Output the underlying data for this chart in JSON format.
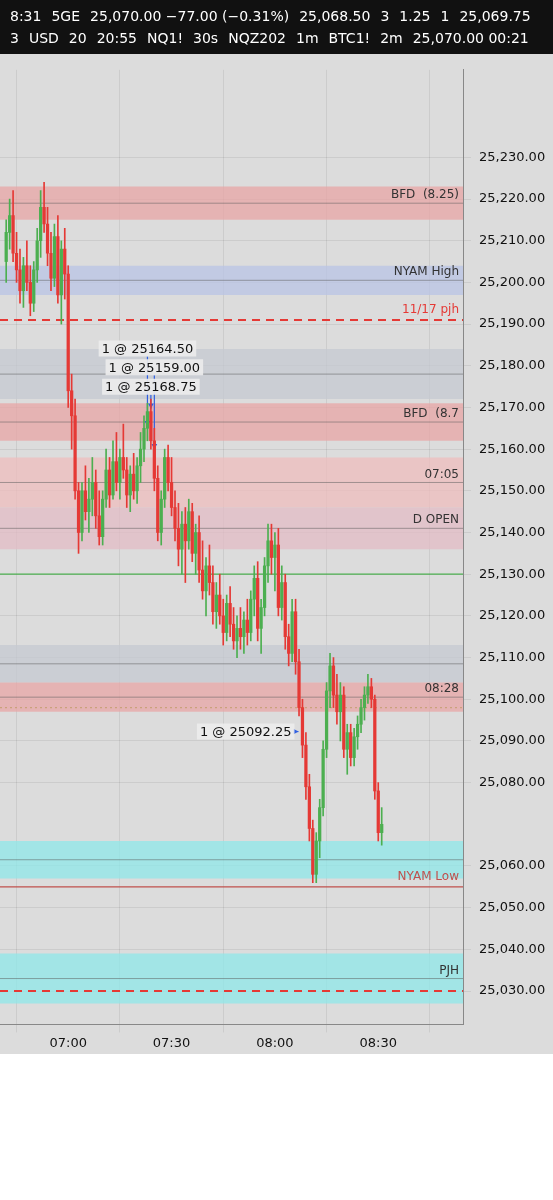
{
  "chart_data": {
    "type": "candlestick",
    "x": [
      6.7,
      6.7167,
      6.7333,
      6.75,
      6.7667,
      6.7833,
      6.8,
      6.8167,
      6.8333,
      6.85,
      6.8667,
      6.8833,
      6.9,
      6.9167,
      6.9333,
      6.95,
      6.9667,
      6.9833,
      7,
      7.0167,
      7.0333,
      7.05,
      7.0667,
      7.0833,
      7.1,
      7.1167,
      7.1333,
      7.15,
      7.1667,
      7.1833,
      7.2,
      7.2167,
      7.2333,
      7.25,
      7.2667,
      7.2833,
      7.3,
      7.3167,
      7.3333,
      7.35,
      7.3667,
      7.3833,
      7.4,
      7.4167,
      7.4333,
      7.45,
      7.4667,
      7.4833,
      7.5,
      7.5167,
      7.5333,
      7.55,
      7.5667,
      7.5833,
      7.6,
      7.6167,
      7.6333,
      7.65,
      7.6667,
      7.6833,
      7.7,
      7.7167,
      7.7333,
      7.75,
      7.7667,
      7.7833,
      7.8,
      7.8167,
      7.8333,
      7.85,
      7.8667,
      7.8833,
      7.9,
      7.9167,
      7.9333,
      7.95,
      7.9667,
      7.9833,
      8,
      8.0167,
      8.0333,
      8.05,
      8.0667,
      8.0833,
      8.1,
      8.1167,
      8.1333,
      8.15,
      8.1667,
      8.1833,
      8.2,
      8.2167,
      8.2333,
      8.25,
      8.2667,
      8.2833,
      8.3,
      8.3167,
      8.3333,
      8.35,
      8.3667,
      8.3833,
      8.4,
      8.4167,
      8.4333,
      8.45,
      8.4667,
      8.4833,
      8.5,
      8.5167
    ],
    "ohlc": [
      [
        25205,
        25215,
        25200,
        25212
      ],
      [
        25212,
        25220,
        25208,
        25216
      ],
      [
        25216,
        25222,
        25205,
        25207
      ],
      [
        25207,
        25212,
        25200,
        25203
      ],
      [
        25203,
        25208,
        25195,
        25198
      ],
      [
        25198,
        25206,
        25194,
        25204
      ],
      [
        25204,
        25210,
        25198,
        25200
      ],
      [
        25200,
        25204,
        25192,
        25195
      ],
      [
        25195,
        25205,
        25193,
        25203
      ],
      [
        25203,
        25213,
        25200,
        25210
      ],
      [
        25210,
        25222,
        25206,
        25218
      ],
      [
        25218,
        25224,
        25212,
        25214
      ],
      [
        25214,
        25218,
        25204,
        25207
      ],
      [
        25207,
        25212,
        25198,
        25201
      ],
      [
        25201,
        25214,
        25199,
        25211
      ],
      [
        25211,
        25216,
        25195,
        25197
      ],
      [
        25197,
        25210,
        25190,
        25208
      ],
      [
        25208,
        25213,
        25196,
        25202
      ],
      [
        25202,
        25204,
        25170,
        25174
      ],
      [
        25174,
        25178,
        25160,
        25168
      ],
      [
        25168,
        25172,
        25148,
        25150
      ],
      [
        25150,
        25152,
        25135,
        25140
      ],
      [
        25140,
        25152,
        25138,
        25150
      ],
      [
        25150,
        25156,
        25143,
        25145
      ],
      [
        25145,
        25153,
        25140,
        25148
      ],
      [
        25148,
        25158,
        25144,
        25152
      ],
      [
        25152,
        25155,
        25141,
        25144
      ],
      [
        25144,
        25150,
        25137,
        25139
      ],
      [
        25139,
        25150,
        25137,
        25148
      ],
      [
        25148,
        25160,
        25146,
        25155
      ],
      [
        25155,
        25158,
        25146,
        25149
      ],
      [
        25149,
        25162,
        25148,
        25157
      ],
      [
        25157,
        25164,
        25150,
        25152
      ],
      [
        25152,
        25160,
        25148,
        25158
      ],
      [
        25158,
        25166,
        25153,
        25155
      ],
      [
        25155,
        25158,
        25146,
        25149
      ],
      [
        25149,
        25156,
        25145,
        25154
      ],
      [
        25154,
        25159,
        25148,
        25150
      ],
      [
        25150,
        25158,
        25147,
        25156
      ],
      [
        25156,
        25164,
        25152,
        25160
      ],
      [
        25160,
        25168,
        25157,
        25165
      ],
      [
        25165,
        25171,
        25162,
        25169
      ],
      [
        25169,
        25172,
        25160,
        25162
      ],
      [
        25162,
        25165,
        25150,
        25153
      ],
      [
        25153,
        25156,
        25138,
        25140
      ],
      [
        25140,
        25150,
        25137,
        25148
      ],
      [
        25148,
        25160,
        25146,
        25158
      ],
      [
        25158,
        25161,
        25150,
        25152
      ],
      [
        25152,
        25158,
        25144,
        25146
      ],
      [
        25146,
        25150,
        25138,
        25141
      ],
      [
        25141,
        25147,
        25132,
        25136
      ],
      [
        25136,
        25145,
        25130,
        25142
      ],
      [
        25142,
        25146,
        25128,
        25138
      ],
      [
        25138,
        25148,
        25136,
        25145
      ],
      [
        25145,
        25147,
        25133,
        25135
      ],
      [
        25135,
        25142,
        25130,
        25140
      ],
      [
        25140,
        25144,
        25128,
        25131
      ],
      [
        25131,
        25138,
        25124,
        25126
      ],
      [
        25126,
        25134,
        25120,
        25132
      ],
      [
        25132,
        25137,
        25125,
        25128
      ],
      [
        25128,
        25132,
        25118,
        25121
      ],
      [
        25121,
        25128,
        25117,
        25125
      ],
      [
        25125,
        25130,
        25118,
        25120
      ],
      [
        25120,
        25124,
        25113,
        25116
      ],
      [
        25116,
        25125,
        25114,
        25123
      ],
      [
        25123,
        25127,
        25115,
        25118
      ],
      [
        25118,
        25122,
        25112,
        25114
      ],
      [
        25114,
        25120,
        25110,
        25117
      ],
      [
        25117,
        25122,
        25112,
        25115
      ],
      [
        25115,
        25121,
        25111,
        25119
      ],
      [
        25119,
        25124,
        25113,
        25116
      ],
      [
        25116,
        25126,
        25114,
        25124
      ],
      [
        25124,
        25132,
        25120,
        25129
      ],
      [
        25129,
        25133,
        25114,
        25117
      ],
      [
        25117,
        25124,
        25111,
        25122
      ],
      [
        25122,
        25134,
        25120,
        25132
      ],
      [
        25132,
        25142,
        25128,
        25138
      ],
      [
        25138,
        25142,
        25130,
        25134
      ],
      [
        25134,
        25140,
        25126,
        25137
      ],
      [
        25137,
        25141,
        25120,
        25122
      ],
      [
        25122,
        25132,
        25119,
        25128
      ],
      [
        25128,
        25130,
        25112,
        25115
      ],
      [
        25115,
        25118,
        25108,
        25111
      ],
      [
        25111,
        25124,
        25109,
        25121
      ],
      [
        25121,
        25124,
        25106,
        25109
      ],
      [
        25109,
        25112,
        25096,
        25098
      ],
      [
        25098,
        25100,
        25086,
        25089
      ],
      [
        25089,
        25092,
        25076,
        25079
      ],
      [
        25079,
        25082,
        25066,
        25069
      ],
      [
        25069,
        25071,
        25056,
        25058
      ],
      [
        25058,
        25068,
        25056,
        25066
      ],
      [
        25066,
        25076,
        25062,
        25074
      ],
      [
        25074,
        25090,
        25072,
        25088
      ],
      [
        25088,
        25104,
        25086,
        25102
      ],
      [
        25102,
        25111,
        25098,
        25108
      ],
      [
        25108,
        25110,
        25098,
        25101
      ],
      [
        25101,
        25106,
        25094,
        25097
      ],
      [
        25097,
        25104,
        25090,
        25101
      ],
      [
        25101,
        25103,
        25086,
        25088
      ],
      [
        25088,
        25094,
        25082,
        25092
      ],
      [
        25092,
        25094,
        25084,
        25086
      ],
      [
        25086,
        25093,
        25084,
        25091
      ],
      [
        25091,
        25096,
        25088,
        25094
      ],
      [
        25094,
        25100,
        25092,
        25098
      ],
      [
        25098,
        25103,
        25095,
        25101
      ],
      [
        25101,
        25106,
        25099,
        25103
      ],
      [
        25103,
        25105,
        25098,
        25100
      ],
      [
        25100,
        25101,
        25076,
        25078
      ],
      [
        25078,
        25080,
        25066,
        25068
      ],
      [
        25068,
        25074,
        25065,
        25070
      ]
    ],
    "xlim": [
      6.67,
      8.91
    ],
    "xticks": [
      {
        "value": 7,
        "label": "07:00"
      },
      {
        "value": 7.5,
        "label": "07:30"
      },
      {
        "value": 8,
        "label": "08:00"
      },
      {
        "value": 8.5,
        "label": "08:30"
      }
    ],
    "ylim": [
      25022,
      25251
    ],
    "yticks": [
      {
        "value": 25030,
        "label": "25,030.00"
      },
      {
        "value": 25040,
        "label": "25,040.00"
      },
      {
        "value": 25050,
        "label": "25,050.00"
      },
      {
        "value": 25060,
        "label": "25,060.00"
      },
      {
        "value": 25080,
        "label": "25,080.00"
      },
      {
        "value": 25090,
        "label": "25,090.00"
      },
      {
        "value": 25100,
        "label": "25,100.00"
      },
      {
        "value": 25110,
        "label": "25,110.00"
      },
      {
        "value": 25120,
        "label": "25,120.00"
      },
      {
        "value": 25130,
        "label": "25,130.00"
      },
      {
        "value": 25140,
        "label": "25,140.00"
      },
      {
        "value": 25150,
        "label": "25,150.00"
      },
      {
        "value": 25160,
        "label": "25,160.00"
      },
      {
        "value": 25170,
        "label": "25,170.00"
      },
      {
        "value": 25180,
        "label": "25,180.00"
      },
      {
        "value": 25190,
        "label": "25,190.00"
      },
      {
        "value": 25200,
        "label": "25,200.00"
      },
      {
        "value": 25210,
        "label": "25,210.00"
      },
      {
        "value": 25220,
        "label": "25,220.00"
      },
      {
        "value": 25230,
        "label": "25,230.00"
      }
    ],
    "grid": true,
    "bands": [
      {
        "axis": "y",
        "from": 25215,
        "to": 25223,
        "label": "BFD  (8.25)",
        "color": "#e8a5a5"
      },
      {
        "axis": "y",
        "from": 25197,
        "to": 25204,
        "label": "NYAM High",
        "color": "#b9c4e6"
      },
      {
        "axis": "y",
        "from": 25172,
        "to": 25184,
        "color": "#c6cad2"
      },
      {
        "axis": "y",
        "from": 25162,
        "to": 25171,
        "label": "BFD  (8.7",
        "color": "#e8a5a5"
      },
      {
        "axis": "y",
        "from": 25146,
        "to": 25158,
        "label": "07:05",
        "color": "#efbdbd"
      },
      {
        "axis": "y",
        "from": 25136,
        "to": 25146,
        "label": "D OPEN",
        "color": "#e3bcc6"
      },
      {
        "axis": "y",
        "from": 25104,
        "to": 25113,
        "color": "#c6cad2"
      },
      {
        "axis": "y",
        "from": 25097,
        "to": 25104,
        "label": "08:28",
        "color": "#e8a5a5"
      },
      {
        "axis": "y",
        "from": 25057,
        "to": 25066,
        "color": "#8fe8ea"
      },
      {
        "axis": "y",
        "from": 25027,
        "to": 25039,
        "label": "PJH",
        "color": "#8fe8ea"
      }
    ],
    "ref_lines": [
      {
        "axis": "y",
        "value": 25191,
        "label": "11/17 pjh",
        "color": "#e53935",
        "line_style": "dashed"
      },
      {
        "axis": "y",
        "value": 25130,
        "color": "#4caf50"
      },
      {
        "axis": "y",
        "value": 25098,
        "color": "#c9a27a",
        "line_style": "dotted"
      },
      {
        "axis": "y",
        "value": 25055,
        "label": "NYAM Low",
        "color": "#c0504d"
      },
      {
        "axis": "y",
        "value": 25030,
        "color": "#e53935",
        "line_style": "dashed"
      }
    ],
    "annotations": [
      "8:31",
      "5GE",
      "25,070.00  −77.00 (−0.31%)",
      "25,068.50",
      "3",
      "1.25",
      "1",
      "25,069.75",
      "3",
      "USD",
      "20",
      "20:55",
      "NQ1!",
      "30s",
      "NQZ202",
      "1m",
      "BTC1!",
      "2m",
      {
        "text": "1 @ 25168.75",
        "x": 7.4,
        "y": 25168.75
      },
      {
        "text": "1 @ 25159.00",
        "x": 7.4167,
        "y": 25159
      },
      {
        "text": "1 @ 25164.50",
        "x": 7.3833,
        "y": 25164.5
      },
      {
        "text": "1 @ 25092.25",
        "x": 8.1333,
        "y": 25092.25
      },
      "25,070.00 00:21"
    ]
  }
}
